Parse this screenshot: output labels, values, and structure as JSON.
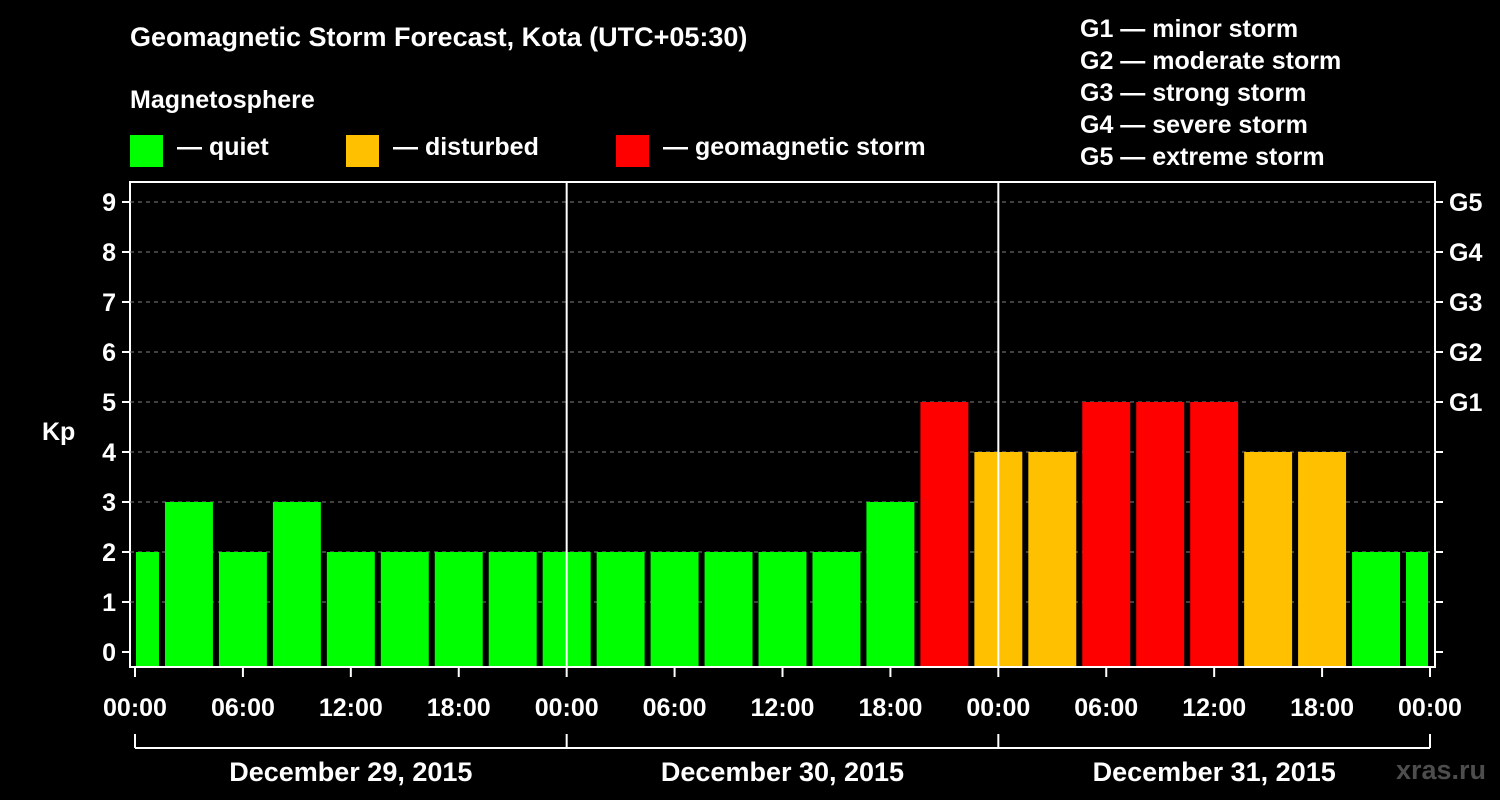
{
  "header": {
    "title": "Geomagnetic Storm Forecast, Kota (UTC+05:30)",
    "subtitle": "Magnetosphere"
  },
  "legend": [
    {
      "label": "— quiet",
      "color": "#00ff00"
    },
    {
      "label": "— disturbed",
      "color": "#ffc000"
    },
    {
      "label": "— geomagnetic storm",
      "color": "#ff0000"
    }
  ],
  "g_scale": [
    "G1 — minor storm",
    "G2 — moderate storm",
    "G3 — strong storm",
    "G4 — severe storm",
    "G5 — extreme storm"
  ],
  "watermark": "xras.ru",
  "chart_data": {
    "type": "bar",
    "title": "Geomagnetic Storm Forecast, Kota (UTC+05:30)",
    "ylabel": "Kp",
    "ylim": [
      0,
      9
    ],
    "yticks": [
      0,
      1,
      2,
      3,
      4,
      5,
      6,
      7,
      8,
      9
    ],
    "right_axis_labels": [
      {
        "kp": 5,
        "label": "G1"
      },
      {
        "kp": 6,
        "label": "G2"
      },
      {
        "kp": 7,
        "label": "G3"
      },
      {
        "kp": 8,
        "label": "G4"
      },
      {
        "kp": 9,
        "label": "G5"
      }
    ],
    "xtick_labels": [
      "00:00",
      "06:00",
      "12:00",
      "18:00",
      "00:00",
      "06:00",
      "12:00",
      "18:00",
      "00:00",
      "06:00",
      "12:00",
      "18:00",
      "00:00"
    ],
    "days": [
      "December 29, 2015",
      "December 30, 2015",
      "December 31, 2015"
    ],
    "bar_interval_hours": 3,
    "first_bar_start_hour": -1.5,
    "values": [
      2,
      3,
      2,
      3,
      2,
      2,
      2,
      2,
      2,
      2,
      2,
      2,
      2,
      2,
      3,
      5,
      4,
      4,
      5,
      5,
      5,
      4,
      4,
      2,
      2
    ],
    "color_thresholds": {
      "quiet_max": 3,
      "disturbed_max": 4
    },
    "colors": {
      "quiet": "#00ff00",
      "disturbed": "#ffc000",
      "storm": "#ff0000"
    },
    "grid": "dashed horizontal at each Kp level"
  }
}
